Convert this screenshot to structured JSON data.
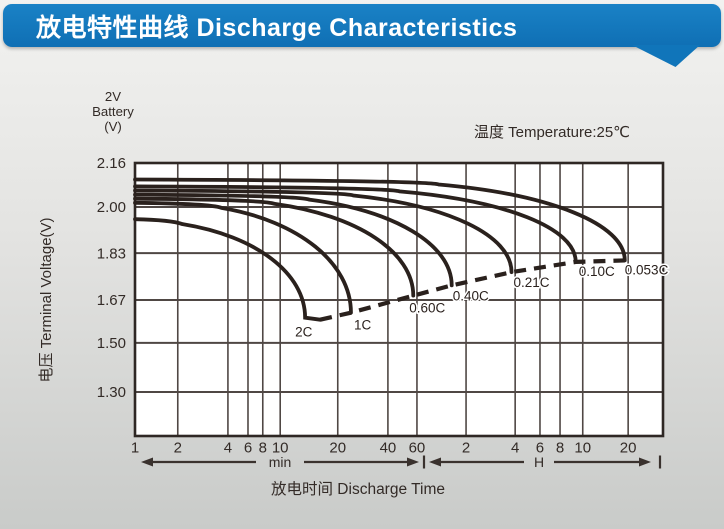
{
  "title_bar": {
    "label": "放电特性曲线 Discharge Characteristics",
    "bg_color": "#1277BD",
    "text_color": "#FFFFFF"
  },
  "chart": {
    "battery_label": [
      "2V",
      "Battery",
      "(V)"
    ],
    "temperature_label": "温度 Temperature:25℃",
    "y_axis_title": "电压 Terminal Voltage(V)",
    "x_axis_title": "放电时间 Discharge Time",
    "minute_unit": "min",
    "hour_unit": "H",
    "colors": {
      "curve": "#2A211D",
      "grid": "#4F4744",
      "border": "#2E2724",
      "plot_bg": "#FFFFFF",
      "text": "#332B27",
      "arrow": "#3A322E"
    }
  },
  "chart_data": {
    "type": "line",
    "title": "放电特性曲线 Discharge Characteristics",
    "subtitle": "温度 Temperature:25℃",
    "battery": "2V Battery",
    "temperature": "25℃",
    "xlabel": "放电时间 Discharge Time",
    "ylabel": "电压 Terminal Voltage(V)",
    "x_axis": {
      "scale": "log-time",
      "ticks": [
        {
          "label": "1",
          "minutes": 1,
          "pos": 0.0,
          "section": "min"
        },
        {
          "label": "2",
          "minutes": 2,
          "pos": 0.081,
          "section": "min"
        },
        {
          "label": "4",
          "minutes": 4,
          "pos": 0.176,
          "section": "min"
        },
        {
          "label": "6",
          "minutes": 6,
          "pos": 0.214,
          "section": "min"
        },
        {
          "label": "8",
          "minutes": 8,
          "pos": 0.242,
          "section": "min"
        },
        {
          "label": "10",
          "minutes": 10,
          "pos": 0.275,
          "section": "min"
        },
        {
          "label": "20",
          "minutes": 20,
          "pos": 0.384,
          "section": "min"
        },
        {
          "label": "40",
          "minutes": 40,
          "pos": 0.479,
          "section": "min"
        },
        {
          "label": "60",
          "minutes": 60,
          "pos": 0.534,
          "section": "min"
        },
        {
          "label": "2",
          "minutes": 120,
          "pos": 0.627,
          "section": "H"
        },
        {
          "label": "4",
          "minutes": 240,
          "pos": 0.72,
          "section": "H"
        },
        {
          "label": "6",
          "minutes": 360,
          "pos": 0.767,
          "section": "H"
        },
        {
          "label": "8",
          "minutes": 480,
          "pos": 0.805,
          "section": "H"
        },
        {
          "label": "10",
          "minutes": 600,
          "pos": 0.848,
          "section": "H"
        },
        {
          "label": "20",
          "minutes": 1200,
          "pos": 0.934,
          "section": "H"
        }
      ]
    },
    "y_axis": {
      "ticks": [
        {
          "label": "2.16",
          "v": 2.16,
          "pos": 0.0
        },
        {
          "label": "2.00",
          "v": 2.0,
          "pos": 0.161
        },
        {
          "label": "1.83",
          "v": 1.83,
          "pos": 0.33
        },
        {
          "label": "1.67",
          "v": 1.67,
          "pos": 0.502
        },
        {
          "label": "1.50",
          "v": 1.5,
          "pos": 0.659
        },
        {
          "label": "1.30",
          "v": 1.3,
          "pos": 0.839
        }
      ]
    },
    "series": [
      {
        "name": "2C",
        "plateau_v": 1.955,
        "end_minutes": 13.5,
        "end_v": 1.6,
        "knee": 0.28
      },
      {
        "name": "1C",
        "plateau_v": 2.015,
        "end_minutes": 24,
        "end_v": 1.62,
        "knee": 0.4
      },
      {
        "name": "0.60C",
        "plateau_v": 2.03,
        "end_minutes": 57,
        "end_v": 1.685,
        "knee": 0.5
      },
      {
        "name": "0.40C",
        "plateau_v": 2.045,
        "end_minutes": 98,
        "end_v": 1.72,
        "knee": 0.55
      },
      {
        "name": "0.21C",
        "plateau_v": 2.06,
        "end_minutes": 228,
        "end_v": 1.765,
        "knee": 0.58
      },
      {
        "name": "0.10C",
        "plateau_v": 2.075,
        "end_minutes": 560,
        "end_v": 1.8,
        "knee": 0.6
      },
      {
        "name": "0.053C",
        "plateau_v": 2.1,
        "end_minutes": 1140,
        "end_v": 1.805,
        "knee": 0.62
      }
    ],
    "cutoff_line": {
      "style": "dashed",
      "connects": "discharge end points of all series"
    }
  }
}
